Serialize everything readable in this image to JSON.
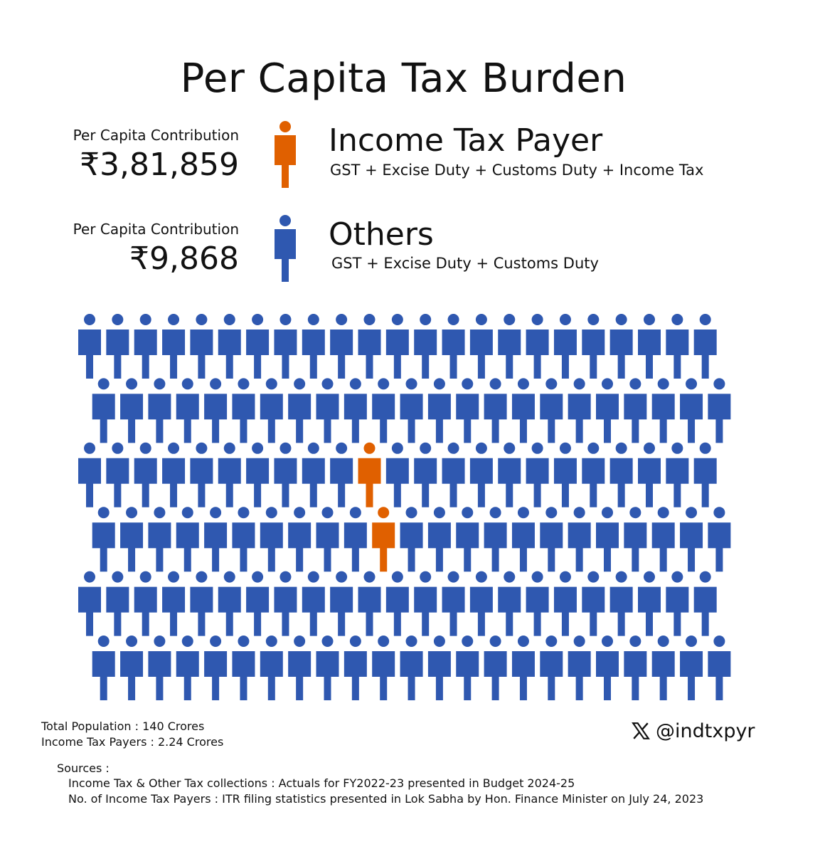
{
  "title": "Per Capita Tax Burden",
  "categories": [
    {
      "label": "Per Capita Contribution",
      "value": "₹3,81,859",
      "name": "Income Tax Payer",
      "formula": "GST + Excise Duty + Customs Duty + Income Tax",
      "color": "#e06000"
    },
    {
      "label": "Per Capita Contribution",
      "value": "₹9,868",
      "name": "Others",
      "formula": "GST + Excise Duty + Customs Duty",
      "color": "#2f58b0"
    }
  ],
  "chart_data": {
    "type": "pictogram",
    "rows": 6,
    "columns": 23,
    "highlighted": [
      {
        "row": 3,
        "column": 11
      },
      {
        "row": 4,
        "column": 11
      }
    ],
    "highlight_color": "#e06000",
    "base_color": "#2f58b0",
    "highlight_icon": "person-icon-orange",
    "base_icon": "person-icon-blue"
  },
  "footer": {
    "population": "Total Population : 140 Crores",
    "taxpayers": "Income Tax Payers : 2.24 Crores",
    "sources_title": "Sources :",
    "source_1": "Income Tax & Other Tax collections : Actuals for FY2022-23 presented in Budget 2024-25",
    "source_2": "No. of Income Tax Payers : ITR filing statistics presented in Lok Sabha by Hon. Finance Minister on July 24, 2023",
    "handle": "@indtxpyr",
    "handle_icon": "x-logo-icon"
  }
}
